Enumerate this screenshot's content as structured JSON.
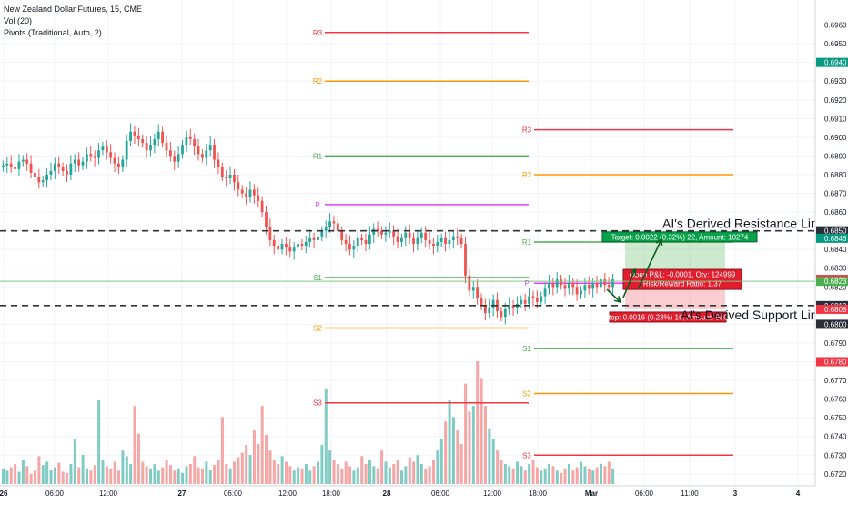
{
  "header": {
    "title": "New Zealand Dollar Futures, 15, CME",
    "indicators": [
      "Vol (20)",
      "Pivots (Traditional, Auto, 2)"
    ]
  },
  "chart_data": {
    "type": "candlestick",
    "symbol": "New Zealand Dollar Futures",
    "interval": "15",
    "exchange": "CME",
    "y_axis": {
      "range": [
        0.6717,
        0.697
      ],
      "ticks": [
        "0.6960",
        "0.6950",
        "0.6940",
        "0.6930",
        "0.6920",
        "0.6910",
        "0.6900",
        "0.6890",
        "0.6880",
        "0.6870",
        "0.6860",
        "0.6850",
        "0.6840",
        "0.6830",
        "0.6820",
        "0.6810",
        "0.6800",
        "0.6790",
        "0.6780",
        "0.6770",
        "0.6760",
        "0.6750",
        "0.6740",
        "0.6730",
        "0.6720"
      ]
    },
    "x_axis": {
      "ticks": [
        "26",
        "06:00",
        "12:00",
        "27",
        "06:00",
        "12:00",
        "18:00",
        "28",
        "06:00",
        "12:00",
        "18:00",
        "Mar",
        "06:00",
        "11:00",
        "3",
        "4"
      ],
      "bold_ticks": [
        "26",
        "27",
        "28",
        "Mar",
        "3",
        "4"
      ]
    },
    "price_labels": [
      {
        "text": "0.6940",
        "value": 0.694,
        "color": "#089981"
      },
      {
        "text": "0.6850",
        "value": 0.685,
        "color": "#2a2e39"
      },
      {
        "text": "0.6846",
        "value": 0.6846,
        "color": "#089981"
      },
      {
        "text": "0.6824",
        "value": 0.6824,
        "color": "#f23645"
      },
      {
        "text": "0.6823",
        "value": 0.6823,
        "color": "#4caf50"
      },
      {
        "text": "0.6810",
        "value": 0.681,
        "color": "#2a2e39"
      },
      {
        "text": "0.6808",
        "value": 0.6808,
        "color": "#f23645"
      },
      {
        "text": "0.6800",
        "value": 0.68,
        "color": "#2a2e39"
      },
      {
        "text": "0.6780",
        "value": 0.678,
        "color": "#f23645"
      }
    ],
    "pivot_periods": [
      {
        "levels": [
          {
            "name": "R3",
            "value": 0.6956,
            "color": "#f23645"
          },
          {
            "name": "R2",
            "value": 0.693,
            "color": "#ff9800"
          },
          {
            "name": "R1",
            "value": 0.689,
            "color": "#4caf50"
          },
          {
            "name": "P",
            "value": 0.6864,
            "color": "#e040fb"
          },
          {
            "name": "S1",
            "value": 0.6825,
            "color": "#4caf50"
          },
          {
            "name": "S2",
            "value": 0.6798,
            "color": "#ff9800"
          },
          {
            "name": "S3",
            "value": 0.6758,
            "color": "#f23645"
          }
        ]
      },
      {
        "levels": [
          {
            "name": "R3",
            "value": 0.6904,
            "color": "#f23645"
          },
          {
            "name": "R2",
            "value": 0.688,
            "color": "#ff9800"
          },
          {
            "name": "R1",
            "value": 0.6844,
            "color": "#4caf50"
          },
          {
            "name": "P",
            "value": 0.6822,
            "color": "#e040fb"
          },
          {
            "name": "S1",
            "value": 0.6787,
            "color": "#4caf50"
          },
          {
            "name": "S2",
            "value": 0.6763,
            "color": "#ff9800"
          },
          {
            "name": "S3",
            "value": 0.673,
            "color": "#f23645"
          }
        ]
      }
    ],
    "horizontal_lines": [
      {
        "value": 0.685,
        "style": "dashed",
        "color": "#333333"
      },
      {
        "value": 0.681,
        "style": "dashed",
        "color": "#333333"
      },
      {
        "value": 0.6823,
        "style": "solid",
        "color": "#81c784"
      }
    ],
    "annotations": [
      {
        "text": "AI's Derived Resistance Line",
        "value": 0.685
      },
      {
        "text": "AI's Derived Support Line",
        "value": 0.681
      }
    ],
    "position": {
      "entry": 0.6824,
      "target": 0.6846,
      "stop": 0.6808,
      "target_label": "Target: 0.0022 (0.32%) 22, Amount: 10274",
      "stop_label": "Stop: 0.0016 (0.23%) 16, Amount: 9800",
      "pnl_label": "Open P&L: -0.0001, Qty: 124999",
      "rr_label": "Risk/Reward Ratio: 1.37"
    },
    "price_series": [
      0.6885,
      0.6886,
      0.6884,
      0.6883,
      0.6887,
      0.6888,
      0.6886,
      0.6881,
      0.6879,
      0.6876,
      0.6877,
      0.688,
      0.6882,
      0.6886,
      0.6884,
      0.6882,
      0.688,
      0.6886,
      0.6888,
      0.6885,
      0.6887,
      0.6891,
      0.689,
      0.6889,
      0.6893,
      0.6895,
      0.6892,
      0.6889,
      0.6886,
      0.6884,
      0.6888,
      0.6898,
      0.6903,
      0.6901,
      0.6899,
      0.6897,
      0.6893,
      0.6896,
      0.6899,
      0.6903,
      0.6897,
      0.6893,
      0.689,
      0.6887,
      0.6891,
      0.6896,
      0.69,
      0.6899,
      0.6895,
      0.6891,
      0.6889,
      0.6893,
      0.6896,
      0.6888,
      0.6884,
      0.6879,
      0.6878,
      0.688,
      0.6876,
      0.6872,
      0.687,
      0.6868,
      0.6872,
      0.6869,
      0.6866,
      0.686,
      0.6852,
      0.6845,
      0.6842,
      0.684,
      0.6843,
      0.6841,
      0.6839,
      0.6841,
      0.6843,
      0.6842,
      0.6844,
      0.6846,
      0.6845,
      0.6847,
      0.685,
      0.6852,
      0.6855,
      0.6854,
      0.685,
      0.6845,
      0.6843,
      0.684,
      0.6842,
      0.6846,
      0.6845,
      0.6843,
      0.6848,
      0.6851,
      0.685,
      0.6848,
      0.6849,
      0.685,
      0.6847,
      0.6844,
      0.6846,
      0.6849,
      0.6846,
      0.6843,
      0.6846,
      0.6849,
      0.6845,
      0.6843,
      0.6842,
      0.6844,
      0.6846,
      0.6843,
      0.6845,
      0.6847,
      0.6846,
      0.6843,
      0.6826,
      0.6818,
      0.682,
      0.6814,
      0.681,
      0.6806,
      0.6809,
      0.6813,
      0.6807,
      0.6804,
      0.6808,
      0.681,
      0.6809,
      0.6811,
      0.6813,
      0.6811,
      0.6815,
      0.6814,
      0.6812,
      0.6815,
      0.6819,
      0.6822,
      0.682,
      0.6824,
      0.6821,
      0.6819,
      0.6822,
      0.682,
      0.6816,
      0.6818,
      0.6821,
      0.6819,
      0.6822,
      0.682,
      0.6824,
      0.6821,
      0.682,
      0.6824
    ],
    "volume_series": [
      14,
      12,
      15,
      18,
      11,
      22,
      16,
      9,
      12,
      25,
      17,
      20,
      13,
      15,
      19,
      11,
      10,
      18,
      40,
      15,
      26,
      14,
      12,
      17,
      75,
      22,
      16,
      14,
      20,
      12,
      30,
      25,
      18,
      70,
      45,
      20,
      16,
      14,
      18,
      12,
      15,
      22,
      17,
      12,
      14,
      10,
      16,
      18,
      25,
      15,
      14,
      20,
      13,
      17,
      22,
      60,
      18,
      14,
      20,
      24,
      28,
      35,
      26,
      48,
      36,
      70,
      44,
      30,
      22,
      18,
      25,
      20,
      16,
      12,
      15,
      14,
      18,
      12,
      16,
      20,
      35,
      85,
      30,
      22,
      18,
      14,
      20,
      16,
      12,
      15,
      25,
      18,
      22,
      16,
      14,
      30,
      20,
      15,
      18,
      22,
      12,
      16,
      24,
      20,
      26,
      18,
      14,
      16,
      22,
      30,
      40,
      56,
      75,
      60,
      48,
      36,
      90,
      65,
      70,
      110,
      95,
      70,
      50,
      40,
      30,
      22,
      18,
      16,
      14,
      20,
      16,
      12,
      18,
      22,
      15,
      12,
      14,
      18,
      16,
      12,
      10,
      14,
      18,
      12,
      15,
      20,
      16,
      14,
      12,
      15,
      18,
      16,
      20,
      14
    ]
  }
}
